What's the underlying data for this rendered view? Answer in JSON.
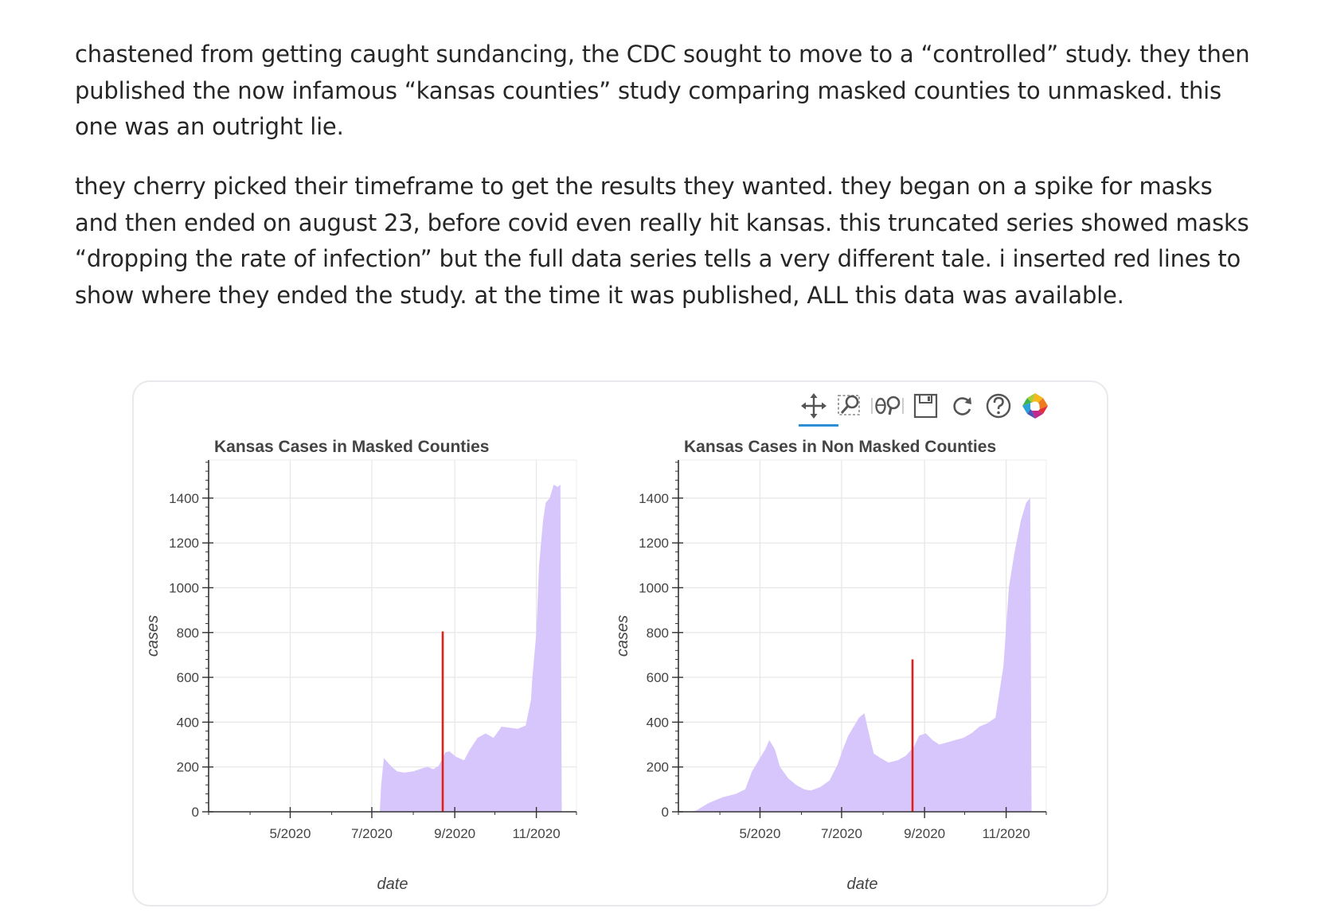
{
  "paragraphs": [
    "chastened from getting caught sundancing, the CDC sought to move to a “controlled” study. they then published the now infamous “kansas counties” study comparing masked counties to unmasked. this one was an outright lie.",
    "they cherry picked their timeframe to get the results they wanted. they began on a spike for masks and then ended on august 23, before covid even really hit kansas. this truncated series showed masks “dropping the rate of infection” but the full data series tells a very different tale. i inserted red lines to show where they ended the study. at the time it was published, ALL this data was available."
  ],
  "toolbar": {
    "tools": [
      "pan-icon",
      "box-zoom-icon",
      "wheel-zoom-icon",
      "save-icon",
      "reset-icon",
      "help-icon",
      "bokeh-logo-icon"
    ]
  },
  "colors": {
    "area": "#d7c6fb",
    "marker": "#e0201b",
    "axis": "#333333",
    "grid": "#e6e6e6",
    "active_tool": "#2a8fd6"
  },
  "chart_data": [
    {
      "type": "area",
      "title": "Kansas Cases in Masked Counties",
      "xlabel": "date",
      "ylabel": "cases",
      "x_ticks": [
        "5/2020",
        "7/2020",
        "9/2020",
        "11/2020"
      ],
      "y_ticks": [
        0,
        200,
        400,
        600,
        800,
        1000,
        1200,
        1400
      ],
      "xlim": [
        "2020-03-01",
        "2020-12-01"
      ],
      "ylim": [
        0,
        1570
      ],
      "grid": true,
      "marker_line": {
        "date": "2020-08-23",
        "top": 805
      },
      "series": [
        {
          "x": [
            "2020-07-01",
            "2020-07-07",
            "2020-07-08",
            "2020-07-10",
            "2020-07-13",
            "2020-07-16",
            "2020-07-20",
            "2020-07-25",
            "2020-08-01",
            "2020-08-08",
            "2020-08-12",
            "2020-08-16",
            "2020-08-20",
            "2020-08-25",
            "2020-08-28",
            "2020-09-02",
            "2020-09-08",
            "2020-09-12",
            "2020-09-18",
            "2020-09-24",
            "2020-09-30",
            "2020-10-06",
            "2020-10-12",
            "2020-10-18",
            "2020-10-24",
            "2020-10-28",
            "2020-10-29",
            "2020-11-01",
            "2020-11-03",
            "2020-11-06",
            "2020-11-08",
            "2020-11-11",
            "2020-11-14",
            "2020-11-17",
            "2020-11-19",
            "2020-11-20"
          ],
          "y": [
            0,
            0,
            120,
            240,
            220,
            200,
            180,
            175,
            180,
            195,
            200,
            190,
            205,
            265,
            270,
            245,
            230,
            275,
            330,
            350,
            330,
            380,
            375,
            370,
            385,
            500,
            600,
            800,
            1100,
            1300,
            1380,
            1400,
            1460,
            1450,
            1460,
            0
          ]
        }
      ]
    },
    {
      "type": "area",
      "title": "Kansas Cases in Non Masked Counties",
      "xlabel": "date",
      "ylabel": "cases",
      "x_ticks": [
        "5/2020",
        "7/2020",
        "9/2020",
        "11/2020"
      ],
      "y_ticks": [
        0,
        200,
        400,
        600,
        800,
        1000,
        1200,
        1400
      ],
      "xlim": [
        "2020-03-01",
        "2020-12-01"
      ],
      "ylim": [
        0,
        1570
      ],
      "grid": true,
      "marker_line": {
        "date": "2020-08-23",
        "top": 680
      },
      "series": [
        {
          "x": [
            "2020-03-08",
            "2020-03-14",
            "2020-03-24",
            "2020-04-03",
            "2020-04-13",
            "2020-04-20",
            "2020-04-25",
            "2020-05-01",
            "2020-05-05",
            "2020-05-08",
            "2020-05-12",
            "2020-05-16",
            "2020-05-22",
            "2020-05-28",
            "2020-06-03",
            "2020-06-08",
            "2020-06-15",
            "2020-06-22",
            "2020-06-28",
            "2020-07-02",
            "2020-07-06",
            "2020-07-10",
            "2020-07-14",
            "2020-07-18",
            "2020-07-21",
            "2020-07-25",
            "2020-07-30",
            "2020-08-05",
            "2020-08-12",
            "2020-08-18",
            "2020-08-24",
            "2020-08-28",
            "2020-09-02",
            "2020-09-07",
            "2020-09-12",
            "2020-09-18",
            "2020-09-24",
            "2020-09-30",
            "2020-10-06",
            "2020-10-12",
            "2020-10-18",
            "2020-10-24",
            "2020-10-30",
            "2020-11-03",
            "2020-11-07",
            "2020-11-12",
            "2020-11-16",
            "2020-11-19",
            "2020-11-20"
          ],
          "y": [
            0,
            5,
            40,
            65,
            80,
            100,
            180,
            240,
            280,
            320,
            280,
            200,
            150,
            120,
            100,
            95,
            110,
            140,
            210,
            280,
            340,
            380,
            420,
            440,
            360,
            260,
            240,
            220,
            230,
            250,
            290,
            340,
            350,
            320,
            300,
            310,
            320,
            330,
            350,
            380,
            395,
            420,
            650,
            1000,
            1150,
            1300,
            1380,
            1400,
            0
          ]
        }
      ]
    }
  ]
}
